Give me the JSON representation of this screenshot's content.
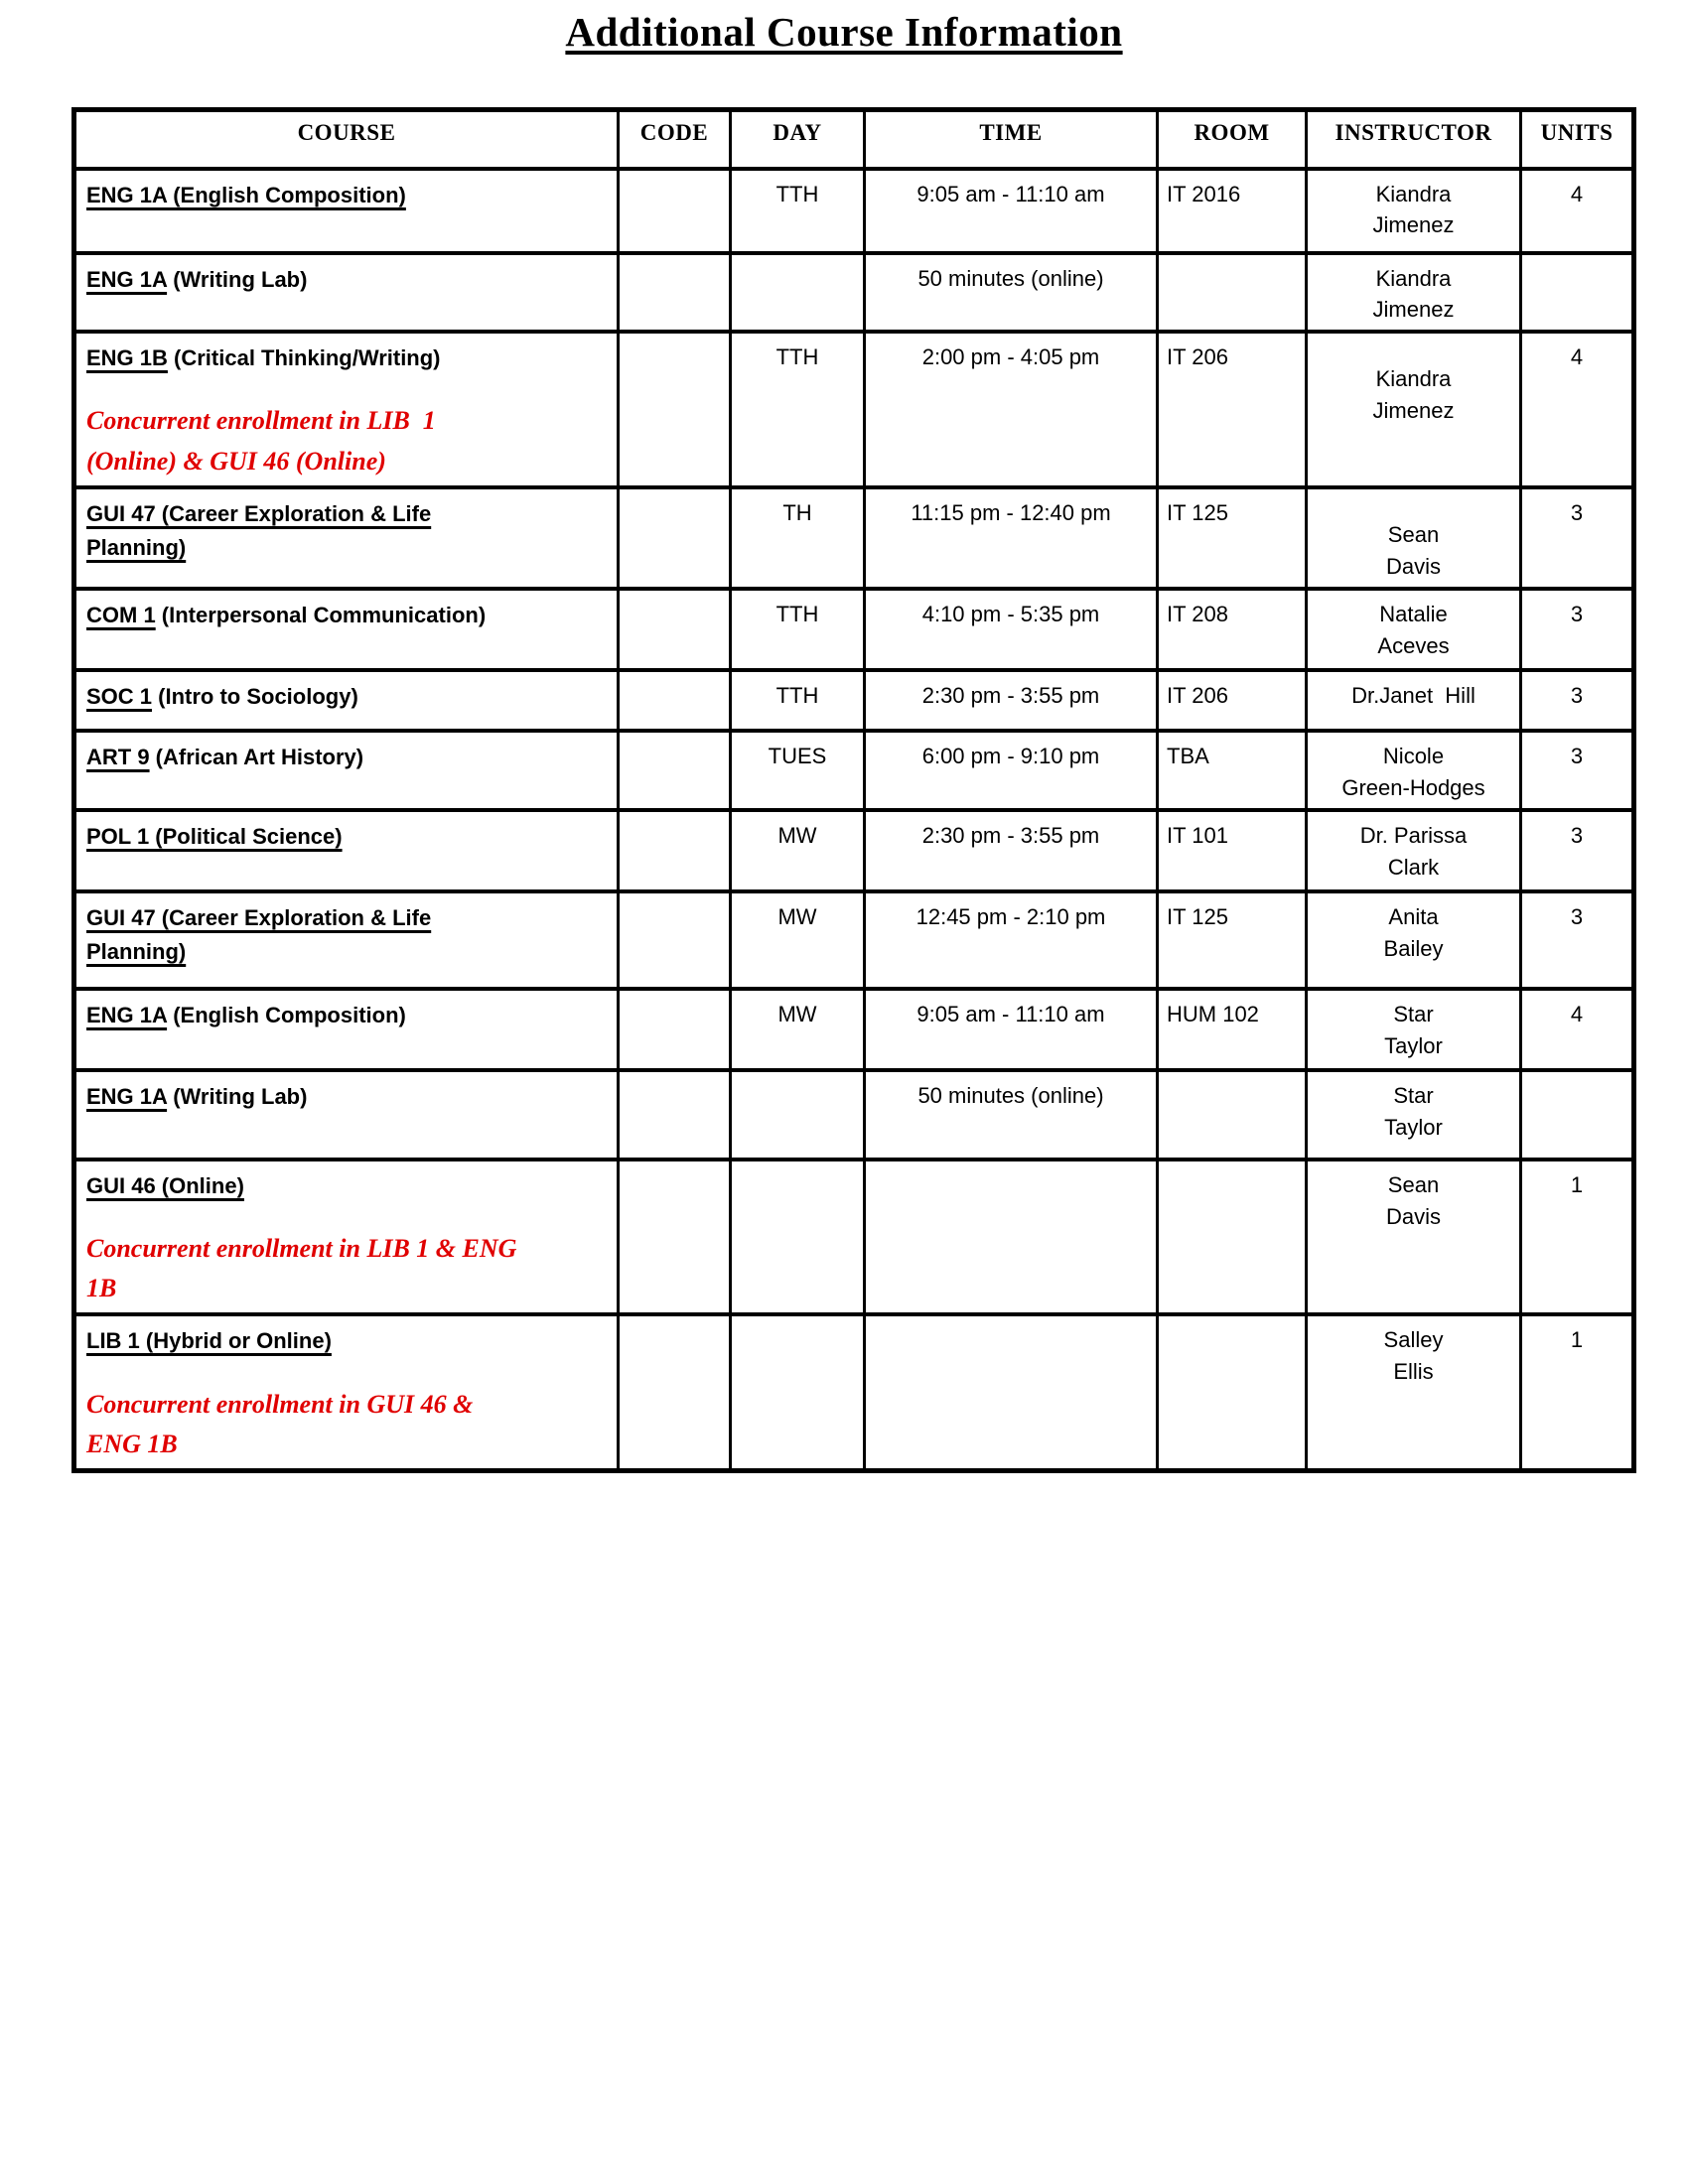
{
  "page": {
    "title": "Additional Course Information"
  },
  "table": {
    "headers": [
      "COURSE",
      "CODE",
      "DAY",
      "TIME",
      "ROOM",
      "INSTRUCTOR",
      "UNITS"
    ],
    "rows": [
      {
        "course_underlined": "ENG 1A (English Composition)",
        "course_suffix": "",
        "note": "",
        "code": "",
        "day": "TTH",
        "time": "9:05 am - 11:10 am",
        "room": "IT 2016",
        "instructor": "Kiandra\nJimenez",
        "units": "4"
      },
      {
        "course_underlined": "ENG 1A",
        "course_suffix": " (Writing Lab)",
        "note": "",
        "code": "",
        "day": "",
        "time": "50 minutes (online)",
        "room": "",
        "instructor": "Kiandra\nJimenez",
        "units": ""
      },
      {
        "course_underlined": "ENG 1B",
        "course_suffix": " (Critical Thinking/Writing)",
        "note": "Concurrent enrollment in LIB  1\n(Online) & GUI 46 (Online)",
        "code": "",
        "day": "TTH",
        "time": "2:00 pm - 4:05 pm",
        "room": "IT 206",
        "instructor": "Kiandra\nJimenez",
        "units": "4"
      },
      {
        "course_underlined": "GUI 47 (Career Exploration & Life\nPlanning)",
        "course_suffix": "",
        "note": "",
        "code": "",
        "day": "TH",
        "time": "11:15 pm - 12:40 pm",
        "room": "IT 125",
        "instructor": "Sean\nDavis",
        "units": "3"
      },
      {
        "course_underlined": "COM 1",
        "course_suffix": " (Interpersonal Communication)",
        "note": "",
        "code": "",
        "day": "TTH",
        "time": "4:10 pm - 5:35 pm",
        "room": "IT 208",
        "instructor": "Natalie\nAceves",
        "units": "3"
      },
      {
        "course_underlined": "SOC 1",
        "course_suffix": " (Intro to Sociology)",
        "note": "",
        "code": "",
        "day": "TTH",
        "time": "2:30 pm - 3:55 pm",
        "room": "IT 206",
        "instructor": "Dr.Janet  Hill",
        "units": "3"
      },
      {
        "course_underlined": "ART 9",
        "course_suffix": " (African Art History)",
        "note": "",
        "code": "",
        "day": "TUES",
        "time": "6:00 pm - 9:10 pm",
        "room": "TBA",
        "instructor": "Nicole\nGreen-Hodges",
        "units": "3"
      },
      {
        "course_underlined": "POL 1 (Political Science)",
        "course_suffix": "",
        "note": "",
        "code": "",
        "day": "MW",
        "time": "2:30 pm - 3:55 pm",
        "room": "IT 101",
        "instructor": "Dr. Parissa\nClark",
        "units": "3"
      },
      {
        "course_underlined": "GUI 47 (Career Exploration & Life\nPlanning)",
        "course_suffix": "",
        "note": "",
        "code": "",
        "day": "MW",
        "time": "12:45 pm - 2:10 pm",
        "room": "IT 125",
        "instructor": "Anita\nBailey",
        "units": "3"
      },
      {
        "course_underlined": "ENG 1A",
        "course_suffix": " (English Composition)",
        "note": "",
        "code": "",
        "day": "MW",
        "time": "9:05 am - 11:10 am",
        "room": "HUM 102",
        "instructor": "Star\nTaylor",
        "units": "4"
      },
      {
        "course_underlined": "ENG 1A",
        "course_suffix": " (Writing Lab)",
        "note": "",
        "code": "",
        "day": "",
        "time": "50 minutes (online)",
        "room": "",
        "instructor": "Star\nTaylor",
        "units": ""
      },
      {
        "course_underlined": "GUI 46 (Online)",
        "course_suffix": "",
        "note": "Concurrent enrollment in LIB 1 & ENG\n1B",
        "code": "",
        "day": "",
        "time": "",
        "room": "",
        "instructor": "Sean\nDavis",
        "units": "1"
      },
      {
        "course_underlined": "LIB 1 (Hybrid or Online)",
        "course_suffix": "",
        "note": "Concurrent enrollment in GUI 46 &\nENG 1B",
        "code": "",
        "day": "",
        "time": "",
        "room": "",
        "instructor": "Salley\nEllis",
        "units": "1"
      }
    ]
  }
}
